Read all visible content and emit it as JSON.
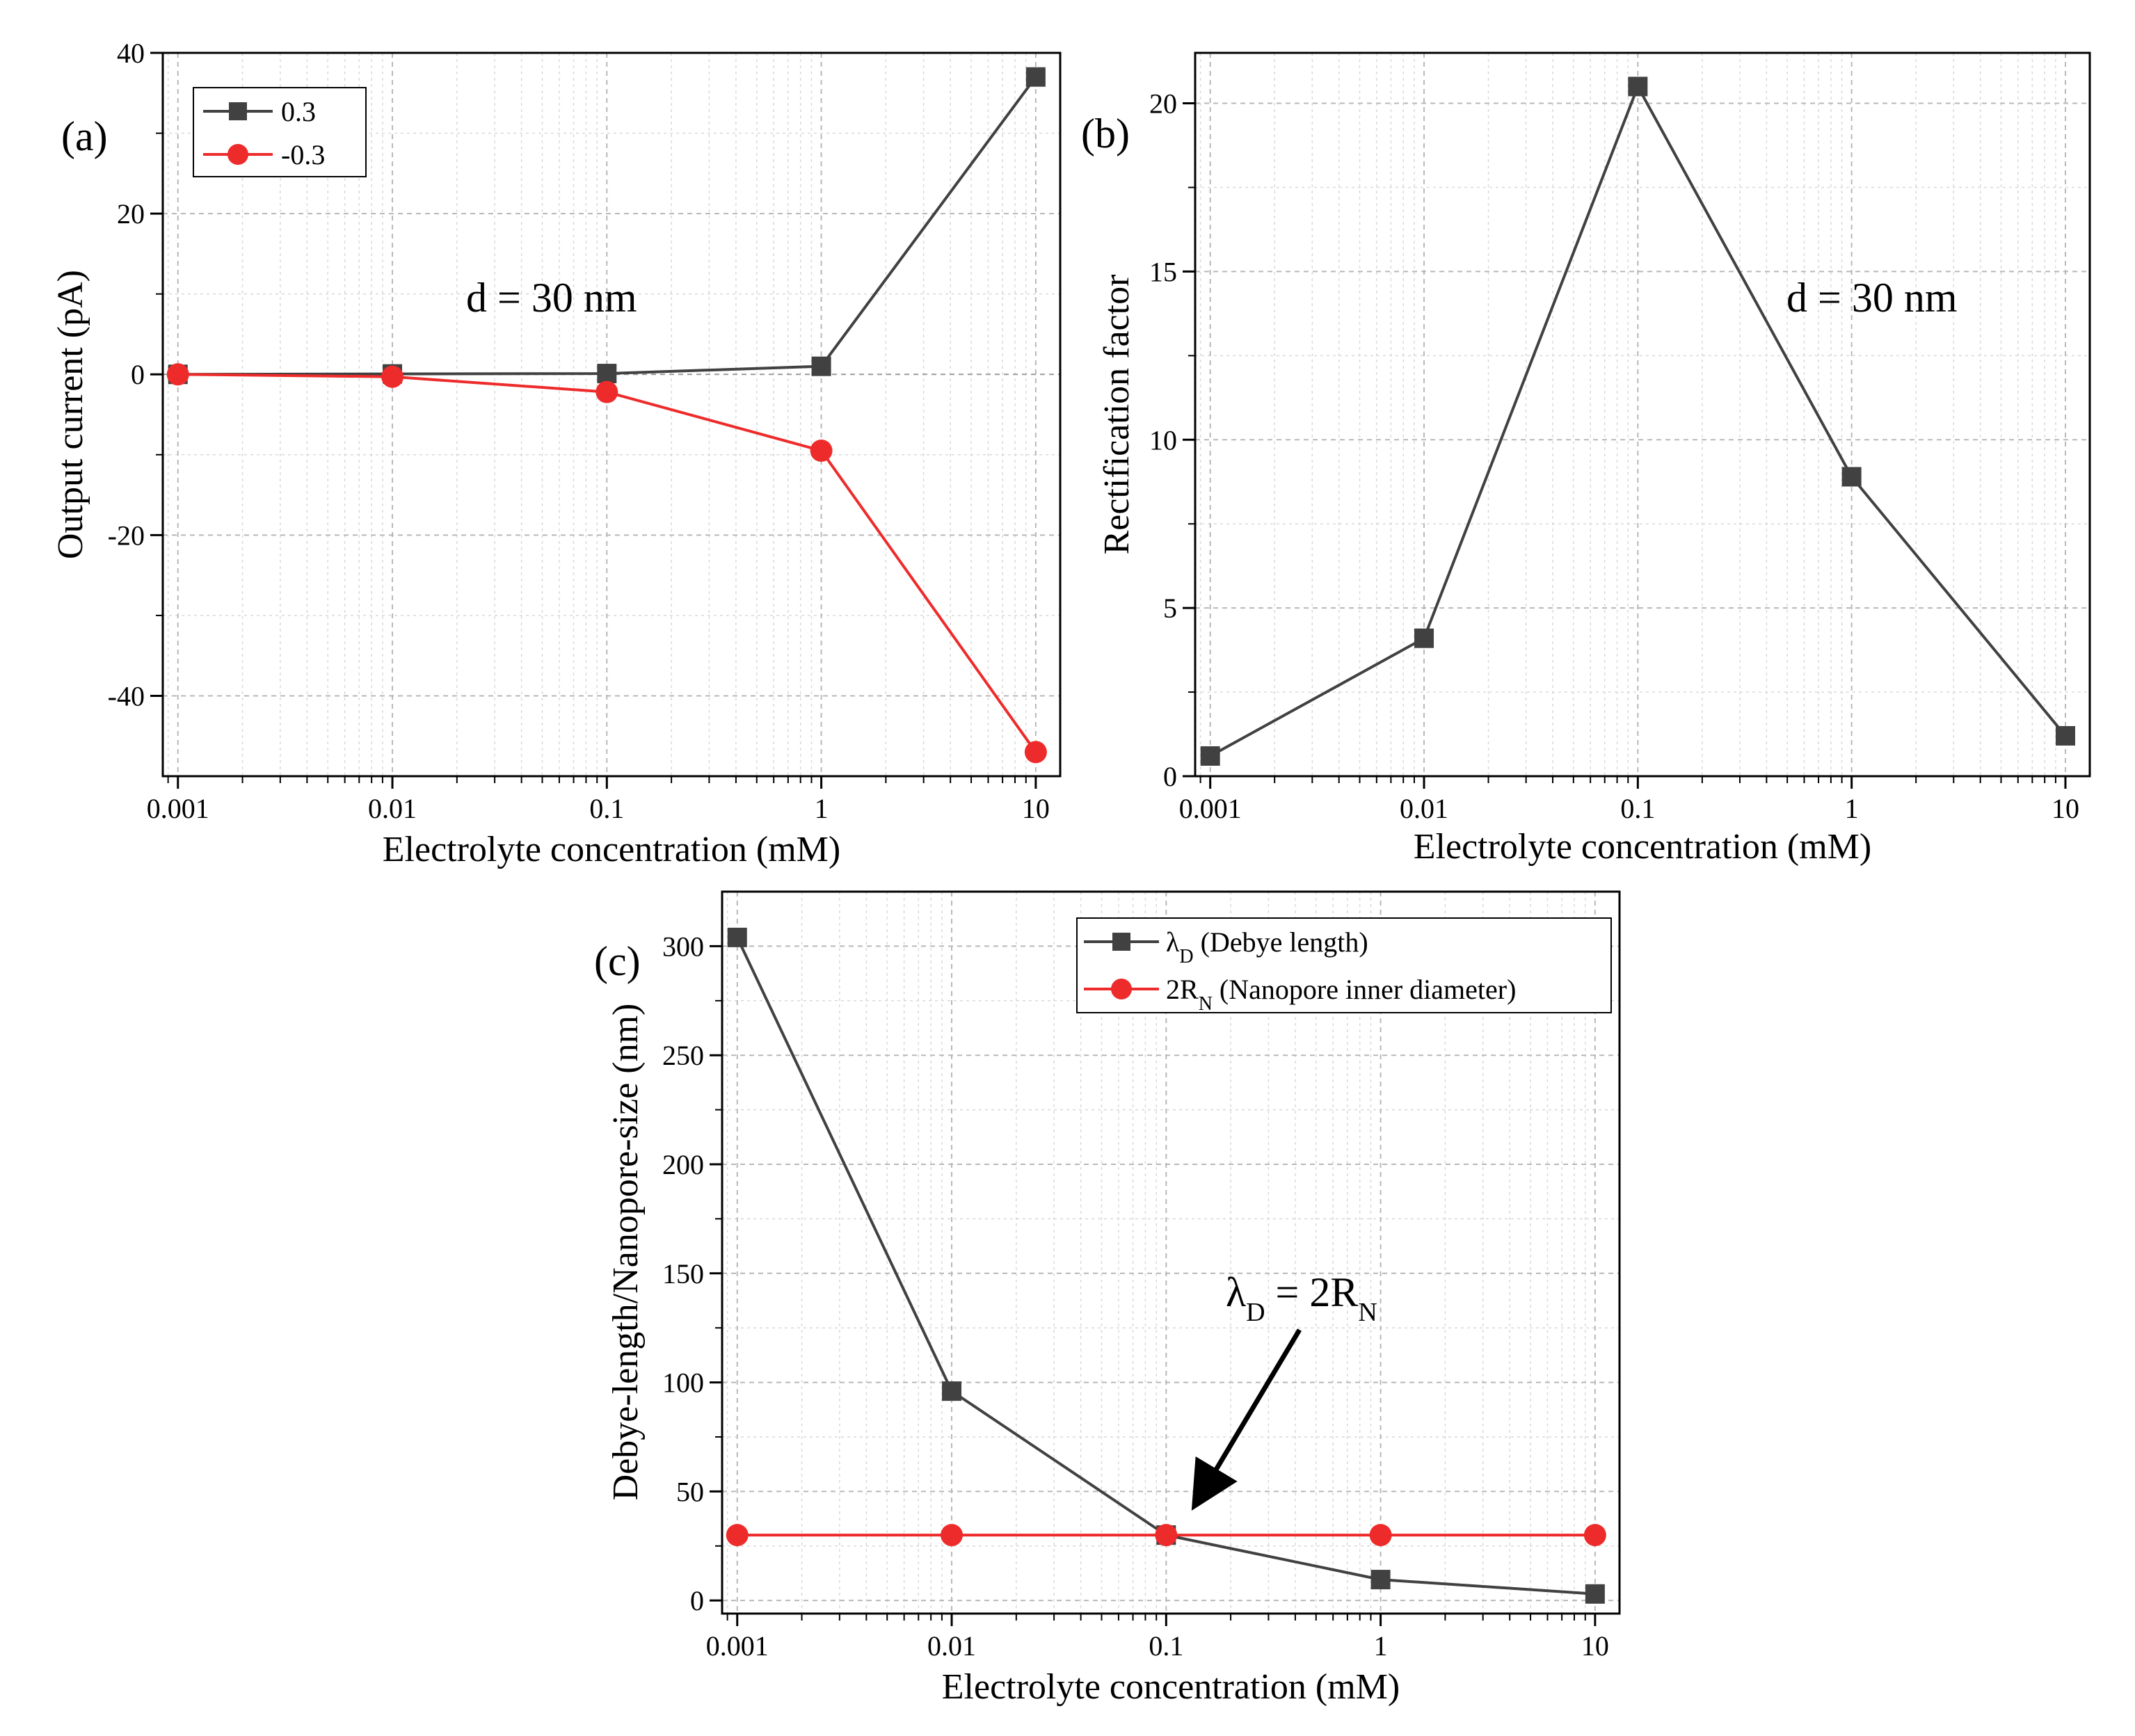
{
  "figure": {
    "colors": {
      "black_series": "#414141",
      "red_series": "#ee2b2b",
      "axis": "#000000",
      "arrow": "#000000"
    }
  },
  "chart_data": [
    {
      "type": "line",
      "panel_label": "(a)",
      "xscale": "log",
      "x": [
        0.001,
        0.01,
        0.1,
        1,
        10
      ],
      "xticks": [
        "0.001",
        "0.01",
        "0.1",
        "1",
        "10"
      ],
      "xlim": [
        0.00085,
        13
      ],
      "ylim": [
        -50,
        40
      ],
      "yticks": [
        40,
        20,
        0,
        -20,
        -40
      ],
      "xlabel": "Electrolyte concentration (mM)",
      "ylabel": "Output current (pA)",
      "annotation": "d = 30 nm",
      "legend_position": "top-left",
      "series": [
        {
          "name": "0.3",
          "marker": "square",
          "color": "#414141",
          "values": [
            0.0,
            0.05,
            0.1,
            1.0,
            37.0
          ]
        },
        {
          "name": "-0.3",
          "marker": "circle",
          "color": "#ee2b2b",
          "values": [
            0.0,
            -0.3,
            -2.2,
            -9.5,
            -47.0
          ]
        }
      ]
    },
    {
      "type": "line",
      "panel_label": "(b)",
      "xscale": "log",
      "x": [
        0.001,
        0.01,
        0.1,
        1,
        10
      ],
      "xticks": [
        "0.001",
        "0.01",
        "0.1",
        "1",
        "10"
      ],
      "xlim": [
        0.00085,
        13
      ],
      "ylim": [
        0,
        21.5
      ],
      "yticks": [
        0,
        5,
        10,
        15,
        20
      ],
      "xlabel": "Electrolyte concentration (mM)",
      "ylabel": "Rectification factor",
      "annotation": "d = 30 nm",
      "series": [
        {
          "name": "Rectification factor",
          "marker": "square",
          "color": "#414141",
          "values": [
            0.6,
            4.1,
            20.5,
            8.9,
            1.2
          ]
        }
      ]
    },
    {
      "type": "line",
      "panel_label": "(c)",
      "xscale": "log",
      "x": [
        0.001,
        0.01,
        0.1,
        1,
        10
      ],
      "xticks": [
        "0.001",
        "0.01",
        "0.1",
        "1",
        "10"
      ],
      "xlim": [
        0.00085,
        13
      ],
      "ylim": [
        -6,
        325
      ],
      "yticks": [
        0,
        50,
        100,
        150,
        200,
        250,
        300
      ],
      "xlabel": "Electrolyte concentration (mM)",
      "ylabel": "Debye-length/Nanopore-size (nm)",
      "annotation": {
        "lam": "λ",
        "sub_d": "D",
        "mid": " = 2R",
        "sub_n": "N"
      },
      "legend_position": "top-right",
      "series": [
        {
          "name": "λ",
          "sub": "D",
          "suffix": " (Debye length)",
          "marker": "square",
          "color": "#414141",
          "values": [
            304,
            96,
            30,
            9.6,
            3.0
          ]
        },
        {
          "name": "2R",
          "sub": "N",
          "suffix": " (Nanopore inner diameter)",
          "marker": "circle",
          "color": "#ee2b2b",
          "values": [
            30,
            30,
            30,
            30,
            30
          ]
        }
      ]
    }
  ]
}
